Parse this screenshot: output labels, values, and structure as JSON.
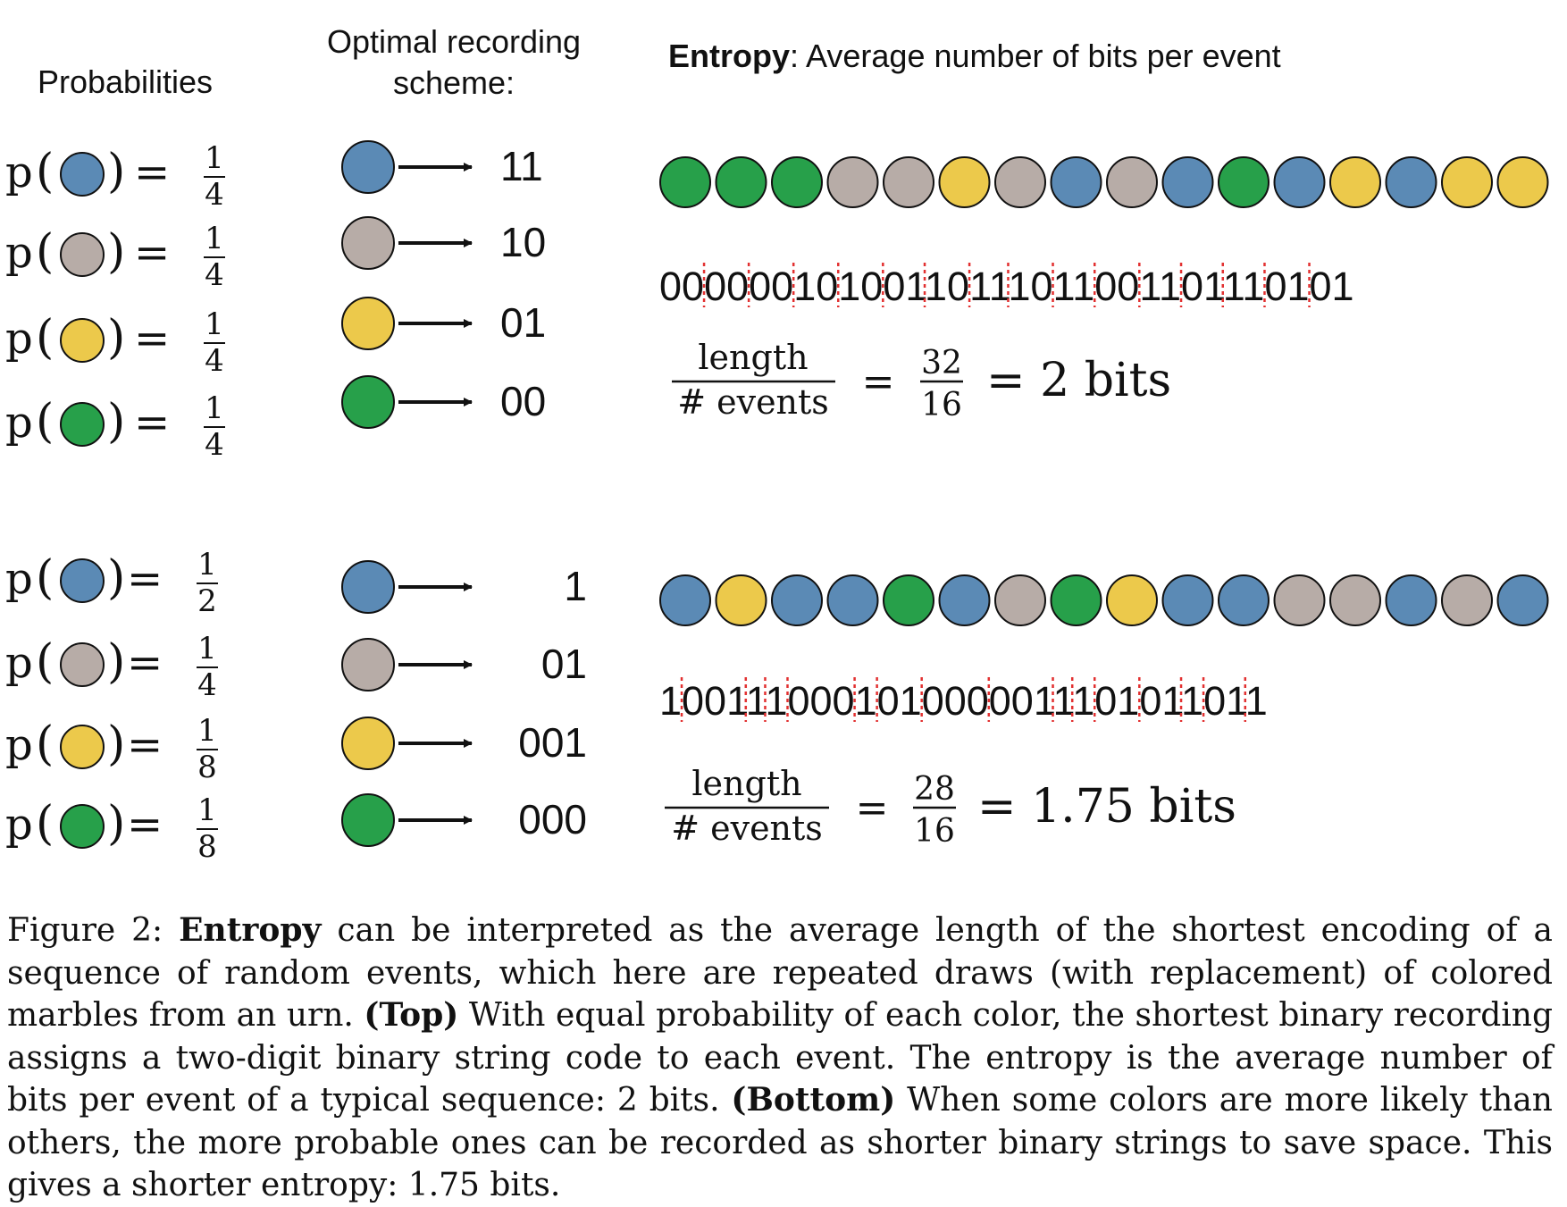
{
  "headers": {
    "probabilities": "Probabilities",
    "scheme_line1": "Optimal recording",
    "scheme_line2": "scheme:",
    "entropy_bold": "Entropy",
    "entropy_rest": ": Average number of bits per event"
  },
  "colors": {
    "blue": "#5b8ab5",
    "gray": "#b7aca7",
    "yellow": "#ecc94b",
    "green": "#27a04a",
    "separator": "#e23030"
  },
  "top": {
    "rows": [
      {
        "color": "blue",
        "numerator": "1",
        "denominator": "4",
        "code": "11"
      },
      {
        "color": "gray",
        "numerator": "1",
        "denominator": "4",
        "code": "10"
      },
      {
        "color": "yellow",
        "numerator": "1",
        "denominator": "4",
        "code": "01"
      },
      {
        "color": "green",
        "numerator": "1",
        "denominator": "4",
        "code": "00"
      }
    ],
    "sequence": [
      "green",
      "green",
      "green",
      "gray",
      "gray",
      "yellow",
      "gray",
      "blue",
      "gray",
      "blue",
      "green",
      "blue",
      "yellow",
      "blue",
      "yellow",
      "yellow"
    ],
    "encoding": [
      "00",
      "00",
      "00",
      "10",
      "10",
      "01",
      "10",
      "11",
      "10",
      "11",
      "00",
      "11",
      "01",
      "11",
      "01",
      "01"
    ],
    "formula": {
      "numerator": "length",
      "denominator": "# events",
      "frac_num": "32",
      "frac_den": "16",
      "result": "= 2 bits"
    }
  },
  "bottom": {
    "rows": [
      {
        "color": "blue",
        "numerator": "1",
        "denominator": "2",
        "code": "1"
      },
      {
        "color": "gray",
        "numerator": "1",
        "denominator": "4",
        "code": "01"
      },
      {
        "color": "yellow",
        "numerator": "1",
        "denominator": "8",
        "code": "001"
      },
      {
        "color": "green",
        "numerator": "1",
        "denominator": "8",
        "code": "000"
      }
    ],
    "sequence": [
      "blue",
      "yellow",
      "blue",
      "blue",
      "green",
      "blue",
      "gray",
      "green",
      "yellow",
      "blue",
      "blue",
      "gray",
      "gray",
      "blue",
      "gray",
      "blue"
    ],
    "encoding": [
      "1",
      "001",
      "1",
      "1",
      "000",
      "1",
      "01",
      "000",
      "001",
      "1",
      "1",
      "01",
      "01",
      "1",
      "01",
      "1"
    ],
    "formula": {
      "numerator": "length",
      "denominator": "# events",
      "frac_num": "28",
      "frac_den": "16",
      "result": "= 1.75 bits"
    }
  },
  "caption": {
    "label": "Figure 2:",
    "term": "Entropy",
    "part1": "can be interpreted as the average length of the shortest encoding of a sequence of random events, which here are repeated draws (with replacement) of colored marbles from an urn.",
    "top_label": "(Top)",
    "part2": "With equal probability of each color, the shortest binary recording assigns a two-digit binary string code to each event. The entropy is the average number of bits per event of a typical sequence: 2 bits.",
    "bottom_label": "(Bottom)",
    "part3": "When some colors are more likely than others, the more probable ones can be recorded as shorter binary strings to save space. This gives a shorter entropy: 1.75 bits."
  }
}
